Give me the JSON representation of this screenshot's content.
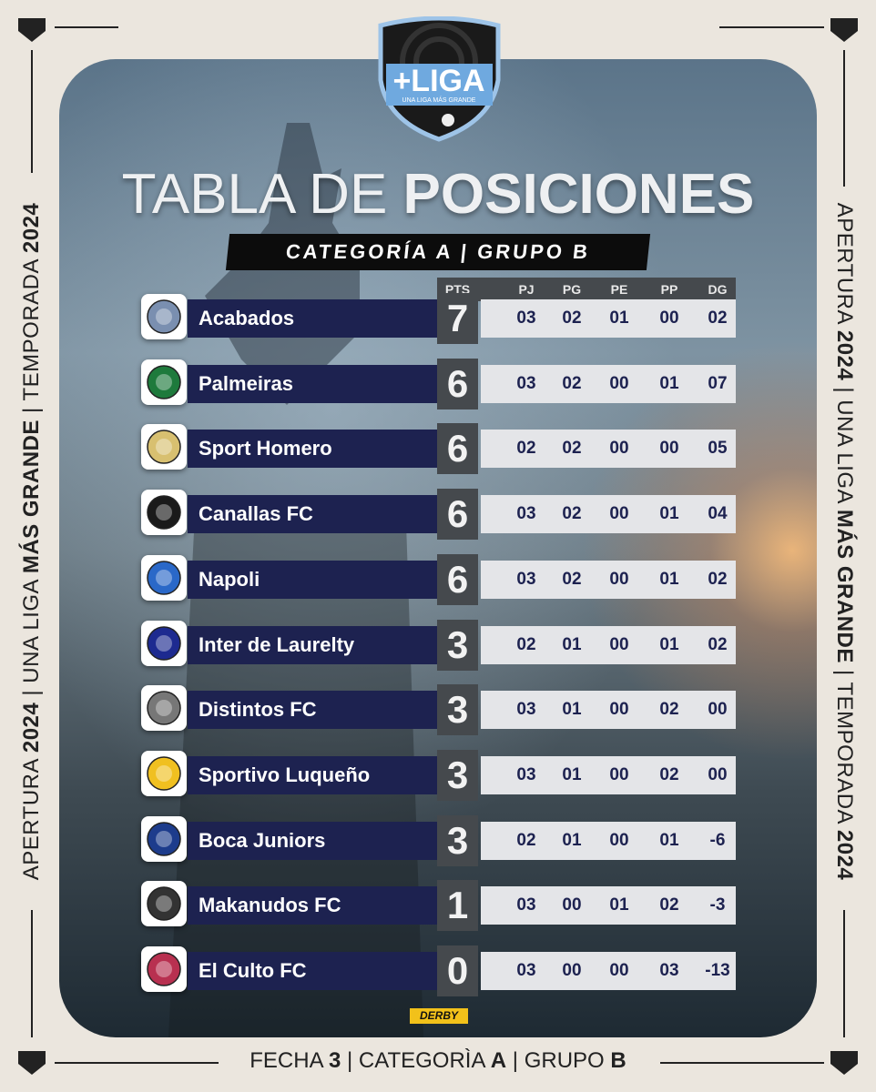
{
  "logo": {
    "brand": "+LIGA",
    "tagline": "UNA LIGA MÁS GRANDE"
  },
  "title": {
    "light": "TABLA DE",
    "bold": "POSICIONES"
  },
  "subtitle": "CATEGORÍA A | GRUPO B",
  "side_text": [
    {
      "text": "APERTURA ",
      "bold": false
    },
    {
      "text": "2024",
      "bold": true
    },
    {
      "text": " | UNA LIGA ",
      "bold": false
    },
    {
      "text": "MÁS GRANDE",
      "bold": true
    },
    {
      "text": " | TEMPORADA ",
      "bold": false
    },
    {
      "text": "2024",
      "bold": true
    }
  ],
  "table": {
    "columns": [
      "PTS",
      "PJ",
      "PG",
      "PE",
      "PP",
      "DG"
    ],
    "rows": [
      {
        "team": "Acabados",
        "pts": "7",
        "stats": [
          "03",
          "02",
          "01",
          "00",
          "02"
        ]
      },
      {
        "team": "Palmeiras",
        "pts": "6",
        "stats": [
          "03",
          "02",
          "00",
          "01",
          "07"
        ]
      },
      {
        "team": "Sport Homero",
        "pts": "6",
        "stats": [
          "02",
          "02",
          "00",
          "00",
          "05"
        ]
      },
      {
        "team": "Canallas FC",
        "pts": "6",
        "stats": [
          "03",
          "02",
          "00",
          "01",
          "04"
        ]
      },
      {
        "team": "Napoli",
        "pts": "6",
        "stats": [
          "03",
          "02",
          "00",
          "01",
          "02"
        ]
      },
      {
        "team": "Inter de Laurelty",
        "pts": "3",
        "stats": [
          "02",
          "01",
          "00",
          "01",
          "02"
        ]
      },
      {
        "team": "Distintos FC",
        "pts": "3",
        "stats": [
          "03",
          "01",
          "00",
          "02",
          "00"
        ]
      },
      {
        "team": "Sportivo Luqueño",
        "pts": "3",
        "stats": [
          "03",
          "01",
          "00",
          "02",
          "00"
        ]
      },
      {
        "team": "Boca Juniors",
        "pts": "3",
        "stats": [
          "02",
          "01",
          "00",
          "01",
          "-6"
        ]
      },
      {
        "team": "Makanudos FC",
        "pts": "1",
        "stats": [
          "03",
          "00",
          "01",
          "02",
          "-3"
        ]
      },
      {
        "team": "El Culto FC",
        "pts": "0",
        "stats": [
          "03",
          "00",
          "00",
          "03",
          "-13"
        ]
      }
    ]
  },
  "badge": "DERBY",
  "footer": [
    {
      "text": "FECHA ",
      "bold": false
    },
    {
      "text": "3",
      "bold": true
    },
    {
      "text": " | CATEGORÌA ",
      "bold": false
    },
    {
      "text": "A",
      "bold": true
    },
    {
      "text": " | GRUPO ",
      "bold": false
    },
    {
      "text": "B",
      "bold": true
    }
  ]
}
